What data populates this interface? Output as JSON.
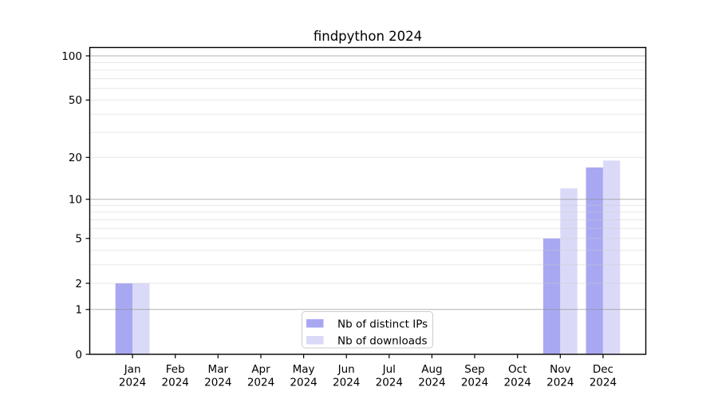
{
  "chart_data": {
    "type": "bar",
    "title": "findpython 2024",
    "categories": [
      "Jan",
      "Feb",
      "Mar",
      "Apr",
      "May",
      "Jun",
      "Jul",
      "Aug",
      "Sep",
      "Oct",
      "Nov",
      "Dec"
    ],
    "x_tick_year_line": "2024",
    "series": [
      {
        "name": "Nb of distinct IPs",
        "color": "#a8a8f2",
        "values": [
          2,
          0,
          0,
          0,
          0,
          0,
          0,
          0,
          0,
          0,
          5,
          17
        ]
      },
      {
        "name": "Nb of downloads",
        "color": "#dadaf8",
        "values": [
          2,
          0,
          0,
          0,
          0,
          0,
          0,
          0,
          0,
          0,
          12,
          19
        ]
      }
    ],
    "xlabel": "",
    "ylabel": "",
    "yscale": "log1p",
    "ylim": [
      0,
      114
    ],
    "y_tick_values": [
      0,
      1,
      2,
      5,
      10,
      20,
      50,
      100
    ],
    "y_major_grid": [
      1,
      10,
      100
    ],
    "y_minor_grid": [
      2,
      3,
      4,
      5,
      6,
      7,
      8,
      9,
      20,
      30,
      40,
      50,
      60,
      70,
      80,
      90
    ],
    "grid": true,
    "legend_position": "lower center"
  },
  "colors": {
    "background": "#ffffff",
    "spine": "#000000",
    "major_grid": "#8a8a8a",
    "minor_grid": "#c9c9c9",
    "tick_text": "#000000",
    "legend_border": "#cccccc",
    "legend_background": "#ffffff"
  }
}
